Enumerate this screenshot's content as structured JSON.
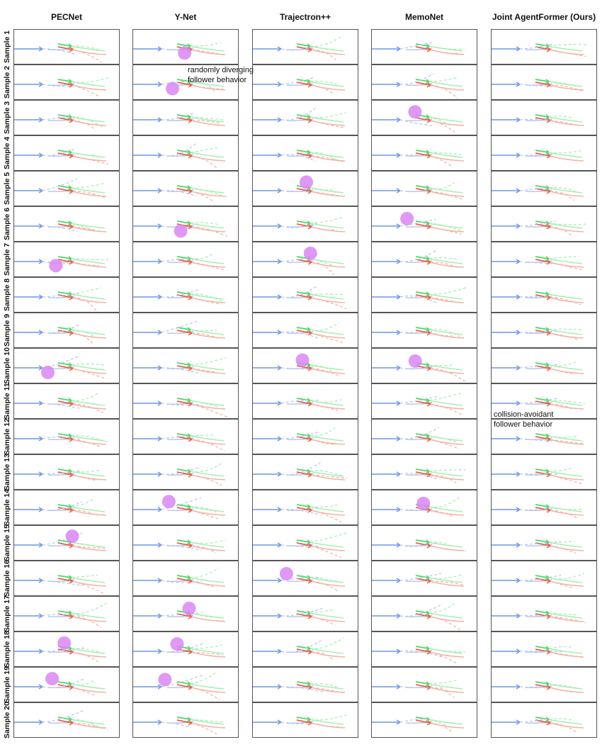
{
  "columns": [
    {
      "label": "PECNet"
    },
    {
      "label": "Y-Net"
    },
    {
      "label": "Trajectron++"
    },
    {
      "label": "MemoNet"
    },
    {
      "label": "Joint AgentFormer (Ours)"
    }
  ],
  "rows": [
    {
      "label": "Sample 1"
    },
    {
      "label": "Sample 2"
    },
    {
      "label": "Sample 3"
    },
    {
      "label": "Sample 4"
    },
    {
      "label": "Sample 5"
    },
    {
      "label": "Sample 6"
    },
    {
      "label": "Sample 7"
    },
    {
      "label": "Sample 8"
    },
    {
      "label": "Sample 9"
    },
    {
      "label": "Sample 10"
    },
    {
      "label": "Sample 11"
    },
    {
      "label": "Sample 12"
    },
    {
      "label": "Sample 13"
    },
    {
      "label": "Sample 14"
    },
    {
      "label": "Sample 15"
    },
    {
      "label": "Sample 16"
    },
    {
      "label": "Sample 17"
    },
    {
      "label": "Sample 18"
    },
    {
      "label": "Sample 19"
    },
    {
      "label": "Sample 20"
    }
  ],
  "highlights": [
    {
      "row": 1,
      "col": 2
    },
    {
      "row": 2,
      "col": 2
    },
    {
      "row": 3,
      "col": 4
    },
    {
      "row": 5,
      "col": 3
    },
    {
      "row": 6,
      "col": 2
    },
    {
      "row": 6,
      "col": 4
    },
    {
      "row": 7,
      "col": 1
    },
    {
      "row": 7,
      "col": 3
    },
    {
      "row": 10,
      "col": 1
    },
    {
      "row": 10,
      "col": 3
    },
    {
      "row": 10,
      "col": 4
    },
    {
      "row": 14,
      "col": 2
    },
    {
      "row": 14,
      "col": 4
    },
    {
      "row": 15,
      "col": 1
    },
    {
      "row": 16,
      "col": 3
    },
    {
      "row": 17,
      "col": 2
    },
    {
      "row": 18,
      "col": 1
    },
    {
      "row": 18,
      "col": 2
    },
    {
      "row": 19,
      "col": 1
    },
    {
      "row": 19,
      "col": 2
    }
  ],
  "annotations": {
    "diverging_line1": "randomly diverging",
    "diverging_line2": "follower behavior",
    "avoidant_line1": "collision-avoidant",
    "avoidant_line2": "follower behavior"
  },
  "colors": {
    "blue": "#6e95e6",
    "blue_light": "#b9c8ef",
    "green": "#4fd86a",
    "green_light": "#a8efb6",
    "red": "#ee6048",
    "red_light": "#f6b3a6",
    "highlight": "#d987f2",
    "border": "#555555"
  }
}
